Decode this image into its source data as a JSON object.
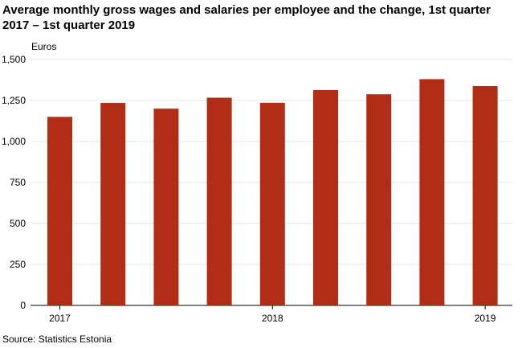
{
  "chart_data": {
    "type": "bar",
    "title": "Average monthly gross wages and salaries per employee and the change, 1st quarter 2017 – 1st quarter 2019",
    "ylabel": "Euros",
    "xlabel": "",
    "categories": [
      "2017 Q1",
      "2017 Q2",
      "2017 Q3",
      "2017 Q4",
      "2018 Q1",
      "2018 Q2",
      "2018 Q3",
      "2018 Q4",
      "2019 Q1"
    ],
    "x_tick_labels": [
      {
        "category_index": 0,
        "label": "2017"
      },
      {
        "category_index": 4,
        "label": "2018"
      },
      {
        "category_index": 8,
        "label": "2019"
      }
    ],
    "values": [
      1150,
      1235,
      1200,
      1267,
      1236,
      1314,
      1288,
      1380,
      1338
    ],
    "ylim": [
      0,
      1500
    ],
    "yticks": [
      0,
      250,
      500,
      750,
      1000,
      1250,
      1500
    ],
    "ytick_labels": [
      "0",
      "250",
      "500",
      "750",
      "1,000",
      "1,250",
      "1,500"
    ],
    "bar_color": "#b22d16",
    "grid": true,
    "source": "Source: Statistics Estonia"
  }
}
